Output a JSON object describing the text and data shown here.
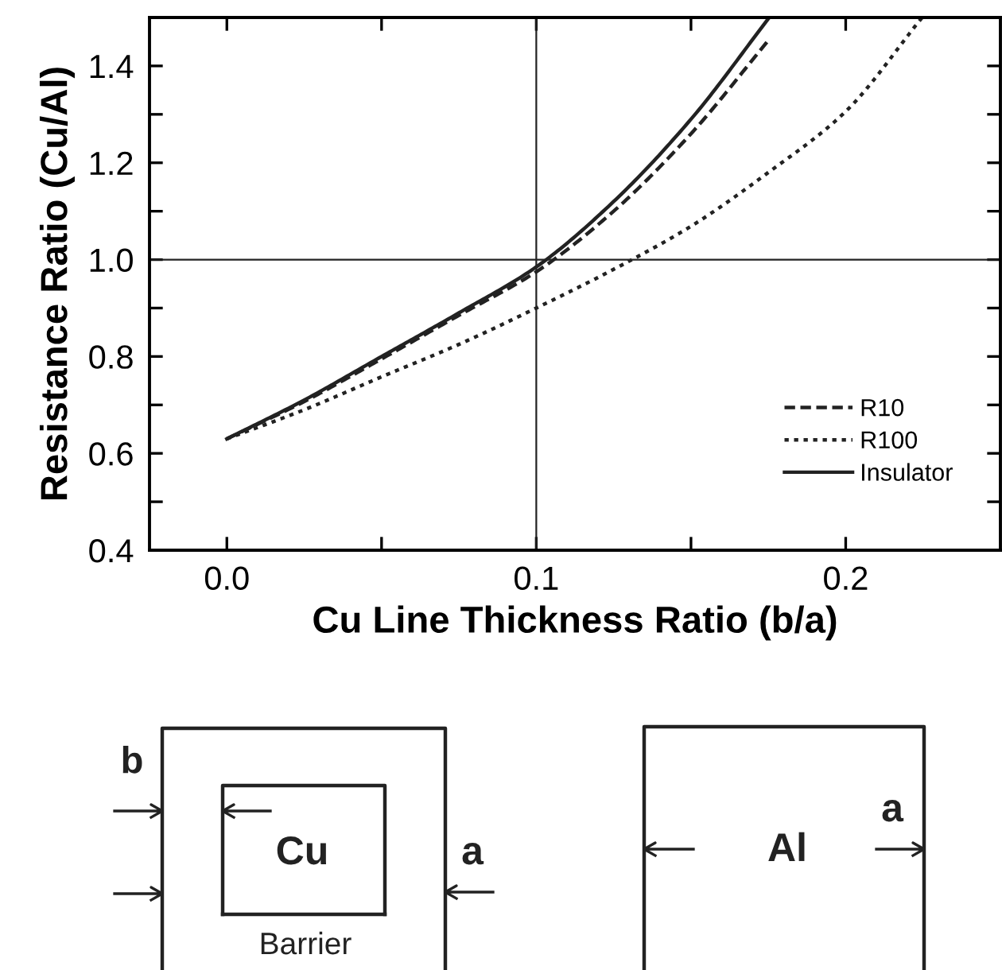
{
  "chart_data": {
    "type": "line",
    "xlabel": "Cu Line Thickness Ratio (b/a)",
    "ylabel": "Resistance Ratio (Cu/Al)",
    "xlim": [
      -0.025,
      0.25
    ],
    "ylim": [
      0.4,
      1.5
    ],
    "xticks": [
      {
        "value": 0.0,
        "label": "0.0"
      },
      {
        "value": 0.05,
        "label": null
      },
      {
        "value": 0.1,
        "label": "0.1"
      },
      {
        "value": 0.15,
        "label": null
      },
      {
        "value": 0.2,
        "label": "0.2"
      }
    ],
    "yticks": [
      0.4,
      {
        "value": 0.5,
        "label": null
      },
      0.6,
      {
        "value": 0.7,
        "label": null
      },
      0.8,
      {
        "value": 0.9,
        "label": null
      },
      {
        "value": 1.0,
        "label": "1.0"
      },
      {
        "value": 1.1,
        "label": null
      },
      1.2,
      {
        "value": 1.3,
        "label": null
      },
      1.4
    ],
    "series": [
      {
        "name": "R10",
        "color": "#222222",
        "line_style": "dashed",
        "x": [
          0.0,
          0.025,
          0.05,
          0.075,
          0.1,
          0.125,
          0.15,
          0.1753
        ],
        "values": [
          0.63,
          0.707,
          0.795,
          0.885,
          0.975,
          1.1,
          1.26,
          1.455
        ]
      },
      {
        "name": "R100",
        "color": "#222222",
        "line_style": "dotted",
        "x": [
          0.0,
          0.025,
          0.05,
          0.075,
          0.1,
          0.125,
          0.15,
          0.175,
          0.2,
          0.2247
        ],
        "values": [
          0.63,
          0.69,
          0.758,
          0.825,
          0.9,
          0.98,
          1.069,
          1.18,
          1.306,
          1.5
        ]
      },
      {
        "name": "Insulator",
        "color": "#222222",
        "line_style": "solid",
        "x": [
          0.0,
          0.025,
          0.05,
          0.075,
          0.1,
          0.125,
          0.15,
          0.1753
        ],
        "values": [
          0.63,
          0.71,
          0.8,
          0.89,
          0.985,
          1.12,
          1.29,
          1.5
        ]
      }
    ],
    "ref_lines": [
      {
        "axis": "x",
        "value": 0.1,
        "color": "#222222"
      },
      {
        "axis": "y",
        "value": 1.0,
        "color": "#222222"
      }
    ],
    "legend": "bottom right",
    "grid": false,
    "annotations": [
      "b",
      "Cu",
      "a",
      "Barrier",
      "Al",
      "a"
    ]
  }
}
